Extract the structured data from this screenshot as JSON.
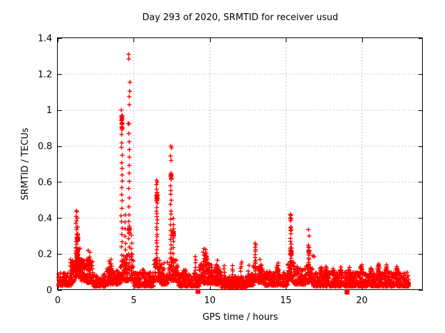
{
  "chart_data": {
    "type": "scatter",
    "title": "Day 293 of 2020, SRMTID for receiver usud",
    "xlabel": "GPS time / hours",
    "ylabel": "SRMTID / TECUs",
    "xlim": [
      0,
      24
    ],
    "ylim": [
      0,
      1.4
    ],
    "xticks": [
      0,
      5,
      10,
      15,
      20
    ],
    "yticks": [
      0,
      0.2,
      0.4,
      0.6,
      0.8,
      1,
      1.2,
      1.4
    ],
    "ytick_labels": [
      "0",
      "0.2",
      "0.4",
      "0.6",
      "0.8",
      "1",
      "1.2",
      "1.4"
    ],
    "grid": true,
    "legend": null,
    "marker": "plus",
    "marker_color": "#ff0000",
    "axis_color": "#000000",
    "grid_color": "#b4b4b4",
    "seed": 2020293,
    "peaks": [
      {
        "t": 1.25,
        "v": 0.44
      },
      {
        "t": 4.7,
        "v": 1.31
      },
      {
        "t": 6.5,
        "v": 0.61
      },
      {
        "t": 7.45,
        "v": 0.8
      },
      {
        "t": 9.7,
        "v": 0.23
      },
      {
        "t": 13.0,
        "v": 0.26
      },
      {
        "t": 15.3,
        "v": 0.42
      },
      {
        "t": 16.5,
        "v": 0.34
      }
    ],
    "bands_format": "[t_start, t_end, y_min, y_max, bottom_bias, n_points]",
    "bands": [
      [
        0.02,
        0.9,
        0.025,
        0.095,
        2.0,
        110
      ],
      [
        0.8,
        1.12,
        0.04,
        0.17,
        1.8,
        40
      ],
      [
        1.1,
        1.52,
        0.07,
        0.24,
        1.6,
        70
      ],
      [
        1.5,
        1.92,
        0.05,
        0.18,
        1.8,
        55
      ],
      [
        1.9,
        2.36,
        0.04,
        0.16,
        1.8,
        60
      ],
      [
        2.35,
        3.2,
        0.02,
        0.09,
        2.0,
        105
      ],
      [
        3.2,
        3.76,
        0.03,
        0.12,
        1.8,
        70
      ],
      [
        3.75,
        4.12,
        0.03,
        0.11,
        1.9,
        45
      ],
      [
        4.1,
        5.0,
        0.05,
        0.2,
        1.9,
        95
      ],
      [
        5.0,
        6.3,
        0.02,
        0.1,
        2.0,
        155
      ],
      [
        6.3,
        6.82,
        0.05,
        0.17,
        1.8,
        60
      ],
      [
        6.8,
        7.22,
        0.03,
        0.12,
        1.9,
        50
      ],
      [
        7.2,
        7.92,
        0.05,
        0.18,
        1.8,
        70
      ],
      [
        7.9,
        9.32,
        0.02,
        0.095,
        2.0,
        175
      ],
      [
        9.3,
        10.2,
        0.035,
        0.15,
        1.7,
        110
      ],
      [
        10.2,
        10.76,
        0.03,
        0.12,
        1.8,
        65
      ],
      [
        10.75,
        12.42,
        0.012,
        0.075,
        1.9,
        205
      ],
      [
        12.4,
        12.92,
        0.025,
        0.09,
        1.9,
        60
      ],
      [
        12.85,
        13.17,
        0.05,
        0.14,
        1.7,
        22
      ],
      [
        13.15,
        13.62,
        0.04,
        0.13,
        1.8,
        55
      ],
      [
        13.6,
        15.12,
        0.025,
        0.105,
        1.9,
        185
      ],
      [
        15.12,
        15.56,
        0.05,
        0.155,
        1.7,
        55
      ],
      [
        15.55,
        16.36,
        0.03,
        0.12,
        1.9,
        95
      ],
      [
        16.35,
        16.82,
        0.04,
        0.14,
        1.8,
        55
      ],
      [
        16.8,
        19.42,
        0.02,
        0.1,
        2.0,
        320
      ],
      [
        19.4,
        23.08,
        0.02,
        0.1,
        2.0,
        455
      ]
    ],
    "columns_format": "[t_center, t_jitter, y_bottom, y_top, n_points]",
    "columns": [
      [
        1.23,
        0.05,
        0.15,
        0.37,
        12
      ],
      [
        4.21,
        0.05,
        0.16,
        0.86,
        20
      ],
      [
        4.45,
        0.03,
        0.1,
        0.42,
        9
      ],
      [
        4.69,
        0.04,
        0.15,
        0.92,
        18
      ],
      [
        4.85,
        0.03,
        0.1,
        0.3,
        7
      ],
      [
        6.52,
        0.05,
        0.13,
        0.555,
        24
      ],
      [
        7.43,
        0.045,
        0.12,
        0.58,
        18
      ],
      [
        7.6,
        0.04,
        0.1,
        0.4,
        10
      ],
      [
        9.05,
        0.03,
        0.05,
        0.185,
        8
      ],
      [
        10.95,
        0.04,
        0.05,
        0.135,
        6
      ],
      [
        11.5,
        0.04,
        0.05,
        0.14,
        6
      ],
      [
        12.05,
        0.04,
        0.05,
        0.15,
        7
      ],
      [
        12.55,
        0.04,
        0.05,
        0.13,
        5
      ],
      [
        13.0,
        0.05,
        0.08,
        0.235,
        13
      ],
      [
        15.32,
        0.04,
        0.12,
        0.33,
        12
      ],
      [
        16.5,
        0.04,
        0.1,
        0.25,
        12
      ]
    ],
    "blobs_format": "[t_center, y_center, t_spread, y_spread, n_points]",
    "blobs": [
      [
        0.97,
        0.13,
        0.07,
        0.03,
        14
      ],
      [
        1.3,
        0.29,
        0.06,
        0.04,
        18
      ],
      [
        1.28,
        0.2,
        0.08,
        0.035,
        22
      ],
      [
        1.62,
        0.15,
        0.09,
        0.035,
        16
      ],
      [
        2.05,
        0.16,
        0.1,
        0.035,
        18
      ],
      [
        3.45,
        0.125,
        0.1,
        0.03,
        14
      ],
      [
        4.22,
        0.93,
        0.04,
        0.05,
        20
      ],
      [
        4.71,
        0.34,
        0.035,
        0.03,
        12
      ],
      [
        5.6,
        0.095,
        0.12,
        0.025,
        12
      ],
      [
        6.53,
        0.52,
        0.035,
        0.035,
        14
      ],
      [
        7.46,
        0.63,
        0.035,
        0.03,
        14
      ],
      [
        7.61,
        0.31,
        0.03,
        0.025,
        8
      ],
      [
        8.35,
        0.1,
        0.09,
        0.025,
        14
      ],
      [
        9.7,
        0.17,
        0.14,
        0.035,
        26
      ],
      [
        10.48,
        0.125,
        0.09,
        0.03,
        14
      ],
      [
        13.35,
        0.12,
        0.08,
        0.03,
        12
      ],
      [
        14.45,
        0.115,
        0.1,
        0.03,
        14
      ],
      [
        15.34,
        0.21,
        0.05,
        0.03,
        14
      ],
      [
        15.78,
        0.11,
        0.07,
        0.025,
        10
      ],
      [
        16.52,
        0.22,
        0.04,
        0.025,
        10
      ],
      [
        17.3,
        0.105,
        0.08,
        0.025,
        12
      ],
      [
        17.65,
        0.11,
        0.07,
        0.025,
        10
      ],
      [
        18.1,
        0.105,
        0.07,
        0.025,
        10
      ],
      [
        18.6,
        0.11,
        0.07,
        0.025,
        10
      ],
      [
        19.15,
        0.105,
        0.07,
        0.025,
        10
      ],
      [
        19.95,
        0.115,
        0.08,
        0.025,
        12
      ],
      [
        20.6,
        0.11,
        0.07,
        0.025,
        10
      ],
      [
        21.1,
        0.12,
        0.07,
        0.025,
        10
      ],
      [
        21.6,
        0.115,
        0.07,
        0.025,
        10
      ],
      [
        22.3,
        0.105,
        0.07,
        0.025,
        10
      ]
    ],
    "points_format": "[t, v] explicit outlier markers",
    "points": [
      [
        1.22,
        0.44
      ],
      [
        1.26,
        0.435
      ],
      [
        1.21,
        0.41
      ],
      [
        1.28,
        0.4
      ],
      [
        1.24,
        0.385
      ],
      [
        1.31,
        0.35
      ],
      [
        2.0,
        0.22
      ],
      [
        2.12,
        0.21
      ],
      [
        3.5,
        0.17
      ],
      [
        3.38,
        0.16
      ],
      [
        4.18,
        1.0
      ],
      [
        4.25,
        0.97
      ],
      [
        4.66,
        1.31
      ],
      [
        4.67,
        1.285
      ],
      [
        4.75,
        1.155
      ],
      [
        4.74,
        1.105
      ],
      [
        4.7,
        1.075
      ],
      [
        4.71,
        1.03
      ],
      [
        4.63,
        0.925
      ],
      [
        6.5,
        0.61
      ],
      [
        6.55,
        0.6
      ],
      [
        6.48,
        0.585
      ],
      [
        7.44,
        0.8
      ],
      [
        7.48,
        0.79
      ],
      [
        7.42,
        0.745
      ],
      [
        7.46,
        0.72
      ],
      [
        7.0,
        0.15
      ],
      [
        9.62,
        0.23
      ],
      [
        9.72,
        0.225
      ],
      [
        9.57,
        0.21
      ],
      [
        9.78,
        0.205
      ],
      [
        10.5,
        0.165
      ],
      [
        12.1,
        0.155
      ],
      [
        12.98,
        0.26
      ],
      [
        13.03,
        0.25
      ],
      [
        13.3,
        0.17
      ],
      [
        14.5,
        0.15
      ],
      [
        15.3,
        0.42
      ],
      [
        15.33,
        0.415
      ],
      [
        15.28,
        0.4
      ],
      [
        15.35,
        0.395
      ],
      [
        15.31,
        0.385
      ],
      [
        15.34,
        0.35
      ],
      [
        15.3,
        0.345
      ],
      [
        15.36,
        0.335
      ],
      [
        16.48,
        0.335
      ],
      [
        16.53,
        0.3
      ],
      [
        16.78,
        0.19
      ],
      [
        16.85,
        0.185
      ],
      [
        20.0,
        0.14
      ],
      [
        21.1,
        0.145
      ],
      [
        21.62,
        0.14
      ],
      [
        22.3,
        0.13
      ]
    ],
    "squares_format": "[t, v] filled square markers on the x-axis",
    "squares": [
      [
        9.22,
        -0.008
      ],
      [
        19.02,
        -0.012
      ]
    ]
  }
}
